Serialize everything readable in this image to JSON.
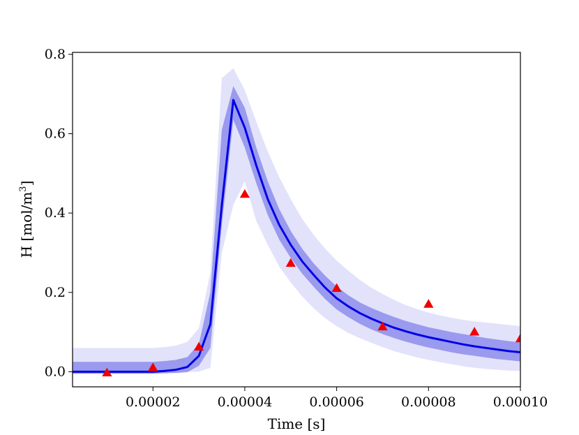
{
  "chart_data": {
    "type": "line",
    "title": "",
    "xlabel": "Time [s]",
    "ylabel": "H [mol/m",
    "ylabel_sup": "3",
    "ylabel_close": "]",
    "xlim": [
      2.5e-06,
      0.0001
    ],
    "ylim": [
      -0.038,
      0.805
    ],
    "x_ticks": [
      2e-05,
      4e-05,
      6e-05,
      8e-05,
      0.0001
    ],
    "x_tick_labels": [
      "0.00002",
      "0.00004",
      "0.00006",
      "0.00008",
      "0.00010"
    ],
    "y_ticks": [
      0.0,
      0.2,
      0.4,
      0.6,
      0.8
    ],
    "y_tick_labels": [
      "0.0",
      "0.2",
      "0.4",
      "0.6",
      "0.8"
    ],
    "grid": false,
    "colors": {
      "mean_line": "#0000e6",
      "band_inner": "#9a9aee",
      "band_outer": "#e2e2fb",
      "observed": "#ee0000"
    },
    "x": [
      2.5e-06,
      5e-06,
      7.5e-06,
      1e-05,
      1.25e-05,
      1.5e-05,
      1.75e-05,
      2e-05,
      2.25e-05,
      2.5e-05,
      2.75e-05,
      3e-05,
      3.25e-05,
      3.5e-05,
      3.75e-05,
      4e-05,
      4.25e-05,
      4.5e-05,
      4.75e-05,
      5e-05,
      5.25e-05,
      5.5e-05,
      5.75e-05,
      6e-05,
      6.25e-05,
      6.5e-05,
      6.75e-05,
      7e-05,
      7.25e-05,
      7.5e-05,
      7.75e-05,
      8e-05,
      8.25e-05,
      8.5e-05,
      8.75e-05,
      9e-05,
      9.25e-05,
      9.5e-05,
      9.75e-05,
      0.0001
    ],
    "series": [
      {
        "role": "mean",
        "values": [
          0.0,
          0.0,
          0.0,
          0.0,
          0.0,
          0.0,
          0.0,
          0.0,
          0.002,
          0.005,
          0.012,
          0.04,
          0.12,
          0.42,
          0.685,
          0.615,
          0.52,
          0.435,
          0.37,
          0.32,
          0.278,
          0.244,
          0.212,
          0.185,
          0.165,
          0.148,
          0.134,
          0.122,
          0.111,
          0.102,
          0.094,
          0.087,
          0.081,
          0.075,
          0.069,
          0.064,
          0.06,
          0.056,
          0.052,
          0.049
        ]
      }
    ],
    "bands": [
      {
        "role": "outer",
        "lower": [
          0.0,
          0.0,
          0.0,
          0.0,
          0.0,
          0.0,
          0.0,
          0.0,
          0.0,
          0.0,
          0.0,
          0.0,
          0.01,
          0.3,
          0.42,
          0.48,
          0.38,
          0.32,
          0.265,
          0.225,
          0.19,
          0.16,
          0.135,
          0.115,
          0.098,
          0.085,
          0.073,
          0.062,
          0.052,
          0.044,
          0.036,
          0.03,
          0.024,
          0.019,
          0.014,
          0.01,
          0.007,
          0.005,
          0.003,
          0.002
        ],
        "upper": [
          0.06,
          0.06,
          0.06,
          0.06,
          0.06,
          0.06,
          0.06,
          0.06,
          0.062,
          0.066,
          0.075,
          0.11,
          0.25,
          0.74,
          0.765,
          0.71,
          0.63,
          0.555,
          0.49,
          0.435,
          0.385,
          0.345,
          0.31,
          0.28,
          0.255,
          0.232,
          0.212,
          0.196,
          0.181,
          0.168,
          0.158,
          0.149,
          0.142,
          0.136,
          0.131,
          0.127,
          0.124,
          0.121,
          0.118,
          0.115
        ]
      },
      {
        "role": "inner",
        "lower": [
          -0.005,
          -0.005,
          -0.005,
          -0.005,
          -0.005,
          -0.005,
          -0.005,
          -0.005,
          -0.004,
          -0.003,
          -0.001,
          0.015,
          0.06,
          0.37,
          0.635,
          0.565,
          0.475,
          0.395,
          0.333,
          0.287,
          0.247,
          0.214,
          0.183,
          0.157,
          0.138,
          0.121,
          0.107,
          0.095,
          0.085,
          0.076,
          0.068,
          0.061,
          0.055,
          0.049,
          0.044,
          0.04,
          0.036,
          0.032,
          0.029,
          0.026
        ],
        "upper": [
          0.025,
          0.025,
          0.025,
          0.025,
          0.025,
          0.025,
          0.025,
          0.025,
          0.027,
          0.03,
          0.037,
          0.07,
          0.2,
          0.61,
          0.72,
          0.665,
          0.565,
          0.48,
          0.41,
          0.355,
          0.31,
          0.273,
          0.242,
          0.215,
          0.193,
          0.175,
          0.161,
          0.149,
          0.138,
          0.128,
          0.12,
          0.112,
          0.106,
          0.1,
          0.095,
          0.09,
          0.085,
          0.081,
          0.077,
          0.074
        ]
      }
    ],
    "observed": {
      "marker": "triangle",
      "x": [
        1e-05,
        2e-05,
        3e-05,
        4e-05,
        5e-05,
        6e-05,
        7e-05,
        8e-05,
        9e-05,
        0.0001
      ],
      "y": [
        -0.003,
        0.01,
        0.062,
        0.447,
        0.273,
        0.21,
        0.113,
        0.17,
        0.1,
        0.083
      ]
    }
  }
}
